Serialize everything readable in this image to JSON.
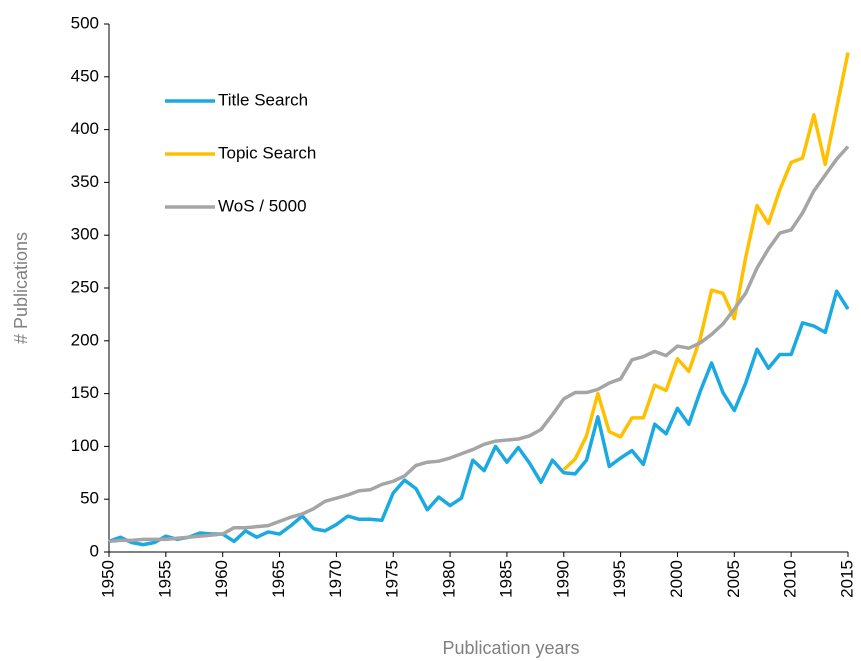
{
  "chart_data": {
    "type": "line",
    "x_label": "Publication years",
    "y_label": "# Publications",
    "x": [
      1950,
      1951,
      1952,
      1953,
      1954,
      1955,
      1956,
      1957,
      1958,
      1959,
      1960,
      1961,
      1962,
      1963,
      1964,
      1965,
      1966,
      1967,
      1968,
      1969,
      1970,
      1971,
      1972,
      1973,
      1974,
      1975,
      1976,
      1977,
      1978,
      1979,
      1980,
      1981,
      1982,
      1983,
      1984,
      1985,
      1986,
      1987,
      1988,
      1989,
      1990,
      1991,
      1992,
      1993,
      1994,
      1995,
      1996,
      1997,
      1998,
      1999,
      2000,
      2001,
      2002,
      2003,
      2004,
      2005,
      2006,
      2007,
      2008,
      2009,
      2010,
      2011,
      2012,
      2013,
      2014,
      2015
    ],
    "series": [
      {
        "name": "Title Search",
        "color": "#1aa9e0",
        "values": [
          10,
          14,
          9,
          7,
          9,
          15,
          12,
          14,
          18,
          17,
          17,
          10,
          20,
          14,
          19,
          17,
          25,
          34,
          22,
          20,
          26,
          34,
          31,
          31,
          30,
          56,
          68,
          60,
          40,
          52,
          44,
          51,
          87,
          77,
          100,
          85,
          99,
          84,
          66,
          87,
          75,
          74,
          87,
          128,
          81,
          89,
          96,
          83,
          121,
          112,
          136,
          121,
          152,
          179,
          151,
          134,
          160,
          192,
          174,
          187,
          187,
          217,
          214,
          208,
          247,
          230
        ]
      },
      {
        "name": "Topic Search",
        "color": "#ffc000",
        "values": [
          null,
          null,
          null,
          null,
          null,
          null,
          null,
          null,
          null,
          null,
          null,
          null,
          null,
          null,
          null,
          null,
          null,
          null,
          null,
          null,
          null,
          null,
          null,
          null,
          null,
          null,
          null,
          null,
          null,
          null,
          null,
          null,
          null,
          null,
          null,
          null,
          null,
          null,
          null,
          null,
          78,
          88,
          110,
          150,
          114,
          109,
          127,
          127,
          158,
          153,
          183,
          171,
          202,
          248,
          245,
          221,
          279,
          328,
          311,
          343,
          369,
          373,
          414,
          367,
          420,
          473
        ]
      },
      {
        "name": "WoS / 5000",
        "color": "#a5a5a5",
        "values": [
          10,
          11,
          11,
          12,
          12,
          12,
          13,
          14,
          15,
          16,
          17,
          23,
          23,
          24,
          25,
          29,
          33,
          36,
          41,
          48,
          51,
          54,
          58,
          59,
          64,
          67,
          72,
          82,
          85,
          86,
          89,
          93,
          97,
          102,
          105,
          106,
          107,
          110,
          116,
          130,
          145,
          151,
          151,
          154,
          160,
          164,
          182,
          185,
          190,
          186,
          195,
          193,
          198,
          206,
          216,
          230,
          245,
          269,
          287,
          302,
          305,
          321,
          342,
          357,
          372,
          384
        ]
      }
    ],
    "xlim": [
      1950,
      2015
    ],
    "xticks": [
      1950,
      1955,
      1960,
      1965,
      1970,
      1975,
      1980,
      1985,
      1990,
      1995,
      2000,
      2005,
      2010,
      2015
    ],
    "ylim": [
      0,
      500
    ],
    "yticks": [
      0,
      50,
      100,
      150,
      200,
      250,
      300,
      350,
      400,
      450,
      500
    ],
    "legend": "upper-left",
    "grid": false
  }
}
